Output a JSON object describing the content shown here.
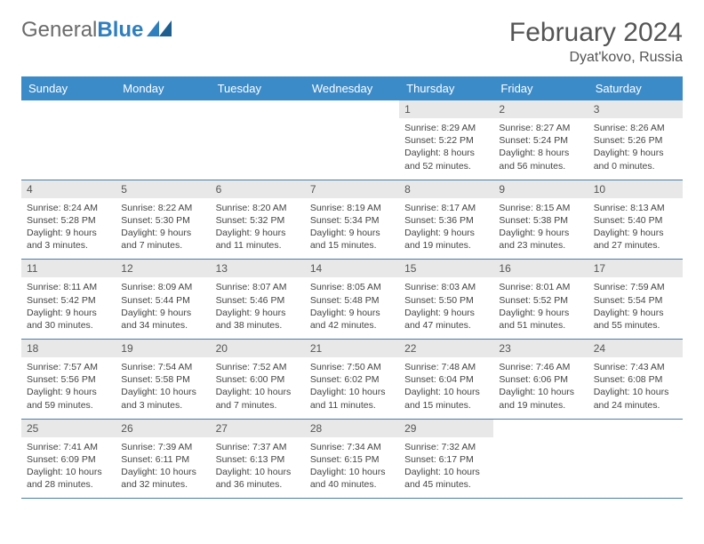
{
  "logo": {
    "part1": "General",
    "part2": "Blue"
  },
  "title": "February 2024",
  "location": "Dyat'kovo, Russia",
  "weekdays": [
    "Sunday",
    "Monday",
    "Tuesday",
    "Wednesday",
    "Thursday",
    "Friday",
    "Saturday"
  ],
  "colors": {
    "header_bg": "#3b8bc9",
    "header_text": "#ffffff",
    "daynum_bg": "#e8e8e8",
    "border": "#4a7fa8",
    "text": "#444444",
    "logo_gray": "#6b6b6b",
    "logo_blue": "#2f7fbf"
  },
  "weeks": [
    [
      {
        "empty": true
      },
      {
        "empty": true
      },
      {
        "empty": true
      },
      {
        "empty": true
      },
      {
        "day": "1",
        "sunrise": "8:29 AM",
        "sunset": "5:22 PM",
        "daylight": "8 hours and 52 minutes."
      },
      {
        "day": "2",
        "sunrise": "8:27 AM",
        "sunset": "5:24 PM",
        "daylight": "8 hours and 56 minutes."
      },
      {
        "day": "3",
        "sunrise": "8:26 AM",
        "sunset": "5:26 PM",
        "daylight": "9 hours and 0 minutes."
      }
    ],
    [
      {
        "day": "4",
        "sunrise": "8:24 AM",
        "sunset": "5:28 PM",
        "daylight": "9 hours and 3 minutes."
      },
      {
        "day": "5",
        "sunrise": "8:22 AM",
        "sunset": "5:30 PM",
        "daylight": "9 hours and 7 minutes."
      },
      {
        "day": "6",
        "sunrise": "8:20 AM",
        "sunset": "5:32 PM",
        "daylight": "9 hours and 11 minutes."
      },
      {
        "day": "7",
        "sunrise": "8:19 AM",
        "sunset": "5:34 PM",
        "daylight": "9 hours and 15 minutes."
      },
      {
        "day": "8",
        "sunrise": "8:17 AM",
        "sunset": "5:36 PM",
        "daylight": "9 hours and 19 minutes."
      },
      {
        "day": "9",
        "sunrise": "8:15 AM",
        "sunset": "5:38 PM",
        "daylight": "9 hours and 23 minutes."
      },
      {
        "day": "10",
        "sunrise": "8:13 AM",
        "sunset": "5:40 PM",
        "daylight": "9 hours and 27 minutes."
      }
    ],
    [
      {
        "day": "11",
        "sunrise": "8:11 AM",
        "sunset": "5:42 PM",
        "daylight": "9 hours and 30 minutes."
      },
      {
        "day": "12",
        "sunrise": "8:09 AM",
        "sunset": "5:44 PM",
        "daylight": "9 hours and 34 minutes."
      },
      {
        "day": "13",
        "sunrise": "8:07 AM",
        "sunset": "5:46 PM",
        "daylight": "9 hours and 38 minutes."
      },
      {
        "day": "14",
        "sunrise": "8:05 AM",
        "sunset": "5:48 PM",
        "daylight": "9 hours and 42 minutes."
      },
      {
        "day": "15",
        "sunrise": "8:03 AM",
        "sunset": "5:50 PM",
        "daylight": "9 hours and 47 minutes."
      },
      {
        "day": "16",
        "sunrise": "8:01 AM",
        "sunset": "5:52 PM",
        "daylight": "9 hours and 51 minutes."
      },
      {
        "day": "17",
        "sunrise": "7:59 AM",
        "sunset": "5:54 PM",
        "daylight": "9 hours and 55 minutes."
      }
    ],
    [
      {
        "day": "18",
        "sunrise": "7:57 AM",
        "sunset": "5:56 PM",
        "daylight": "9 hours and 59 minutes."
      },
      {
        "day": "19",
        "sunrise": "7:54 AM",
        "sunset": "5:58 PM",
        "daylight": "10 hours and 3 minutes."
      },
      {
        "day": "20",
        "sunrise": "7:52 AM",
        "sunset": "6:00 PM",
        "daylight": "10 hours and 7 minutes."
      },
      {
        "day": "21",
        "sunrise": "7:50 AM",
        "sunset": "6:02 PM",
        "daylight": "10 hours and 11 minutes."
      },
      {
        "day": "22",
        "sunrise": "7:48 AM",
        "sunset": "6:04 PM",
        "daylight": "10 hours and 15 minutes."
      },
      {
        "day": "23",
        "sunrise": "7:46 AM",
        "sunset": "6:06 PM",
        "daylight": "10 hours and 19 minutes."
      },
      {
        "day": "24",
        "sunrise": "7:43 AM",
        "sunset": "6:08 PM",
        "daylight": "10 hours and 24 minutes."
      }
    ],
    [
      {
        "day": "25",
        "sunrise": "7:41 AM",
        "sunset": "6:09 PM",
        "daylight": "10 hours and 28 minutes."
      },
      {
        "day": "26",
        "sunrise": "7:39 AM",
        "sunset": "6:11 PM",
        "daylight": "10 hours and 32 minutes."
      },
      {
        "day": "27",
        "sunrise": "7:37 AM",
        "sunset": "6:13 PM",
        "daylight": "10 hours and 36 minutes."
      },
      {
        "day": "28",
        "sunrise": "7:34 AM",
        "sunset": "6:15 PM",
        "daylight": "10 hours and 40 minutes."
      },
      {
        "day": "29",
        "sunrise": "7:32 AM",
        "sunset": "6:17 PM",
        "daylight": "10 hours and 45 minutes."
      },
      {
        "empty": true
      },
      {
        "empty": true
      }
    ]
  ]
}
